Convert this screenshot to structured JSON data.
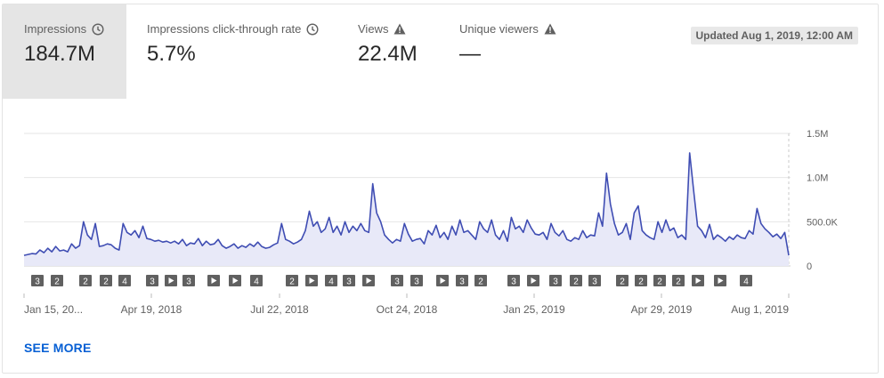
{
  "metrics": [
    {
      "label": "Impressions",
      "value": "184.7M",
      "icon": "clock-icon",
      "active": true
    },
    {
      "label": "Impressions click-through rate",
      "value": "5.7%",
      "icon": "clock-icon",
      "active": false
    },
    {
      "label": "Views",
      "value": "22.4M",
      "icon": "warning-icon",
      "active": false
    },
    {
      "label": "Unique viewers",
      "value": "—",
      "icon": "warning-icon",
      "active": false
    }
  ],
  "updated": "Updated Aug 1, 2019, 12:00 AM",
  "see_more": "SEE MORE",
  "colors": {
    "line": "#3f4db3",
    "fill": "#e8e9f8",
    "active_bg": "#e5e5e5",
    "link": "#065fd4",
    "marker": "#606060"
  },
  "chart_data": {
    "type": "area",
    "title": "",
    "xlabel": "",
    "ylabel": "",
    "ylim": [
      0,
      1500000
    ],
    "y_ticks": [
      "0",
      "500.0K",
      "1.0M",
      "1.5M"
    ],
    "x_tick_labels": [
      "Jan 15, 20...",
      "Apr 19, 2018",
      "Jul 22, 2018",
      "Oct 24, 2018",
      "Jan 25, 2019",
      "Apr 29, 2019",
      "Aug 1, 2019"
    ],
    "grid": true,
    "series": [
      {
        "name": "",
        "x_range": [
          "Jan 15, 2018",
          "Aug 1, 2019"
        ],
        "values": [
          120000,
          130000,
          140000,
          135000,
          180000,
          150000,
          200000,
          160000,
          220000,
          170000,
          180000,
          160000,
          250000,
          200000,
          230000,
          500000,
          350000,
          300000,
          480000,
          220000,
          230000,
          250000,
          240000,
          200000,
          180000,
          480000,
          380000,
          350000,
          400000,
          320000,
          450000,
          310000,
          300000,
          280000,
          290000,
          270000,
          280000,
          260000,
          280000,
          250000,
          300000,
          230000,
          260000,
          250000,
          310000,
          230000,
          280000,
          240000,
          250000,
          300000,
          230000,
          200000,
          220000,
          250000,
          200000,
          230000,
          210000,
          250000,
          220000,
          270000,
          220000,
          200000,
          210000,
          240000,
          260000,
          480000,
          300000,
          280000,
          250000,
          270000,
          300000,
          400000,
          620000,
          450000,
          500000,
          380000,
          420000,
          550000,
          380000,
          450000,
          350000,
          500000,
          380000,
          450000,
          400000,
          480000,
          400000,
          380000,
          930000,
          600000,
          500000,
          350000,
          300000,
          260000,
          300000,
          280000,
          480000,
          360000,
          280000,
          300000,
          310000,
          250000,
          400000,
          350000,
          460000,
          320000,
          380000,
          300000,
          450000,
          350000,
          520000,
          380000,
          400000,
          350000,
          300000,
          500000,
          420000,
          380000,
          520000,
          350000,
          300000,
          400000,
          280000,
          550000,
          420000,
          450000,
          380000,
          520000,
          430000,
          360000,
          350000,
          380000,
          300000,
          480000,
          380000,
          340000,
          400000,
          300000,
          280000,
          320000,
          300000,
          400000,
          320000,
          350000,
          340000,
          600000,
          450000,
          1050000,
          700000,
          480000,
          350000,
          380000,
          480000,
          300000,
          600000,
          680000,
          400000,
          350000,
          320000,
          300000,
          500000,
          380000,
          520000,
          400000,
          430000,
          320000,
          350000,
          300000,
          1280000,
          850000,
          450000,
          400000,
          320000,
          470000,
          300000,
          350000,
          320000,
          280000,
          330000,
          300000,
          350000,
          320000,
          310000,
          400000,
          360000,
          650000,
          480000,
          420000,
          380000,
          330000,
          360000,
          310000,
          380000,
          120000
        ]
      }
    ],
    "annotations": [
      {
        "kind": "number",
        "text": "3"
      },
      {
        "kind": "number",
        "text": "2"
      },
      {
        "kind": "number",
        "text": "2"
      },
      {
        "kind": "number",
        "text": "2"
      },
      {
        "kind": "number",
        "text": "4"
      },
      {
        "kind": "number",
        "text": "3"
      },
      {
        "kind": "play",
        "text": ""
      },
      {
        "kind": "number",
        "text": "3"
      },
      {
        "kind": "play",
        "text": ""
      },
      {
        "kind": "play",
        "text": ""
      },
      {
        "kind": "number",
        "text": "4"
      },
      {
        "kind": "number",
        "text": "2"
      },
      {
        "kind": "play",
        "text": ""
      },
      {
        "kind": "number",
        "text": "4"
      },
      {
        "kind": "number",
        "text": "3"
      },
      {
        "kind": "play",
        "text": ""
      },
      {
        "kind": "number",
        "text": "3"
      },
      {
        "kind": "number",
        "text": "3"
      },
      {
        "kind": "play",
        "text": ""
      },
      {
        "kind": "number",
        "text": "3"
      },
      {
        "kind": "number",
        "text": "2"
      },
      {
        "kind": "number",
        "text": "3"
      },
      {
        "kind": "play",
        "text": ""
      },
      {
        "kind": "number",
        "text": "3"
      },
      {
        "kind": "number",
        "text": "2"
      },
      {
        "kind": "number",
        "text": "3"
      },
      {
        "kind": "number",
        "text": "2"
      },
      {
        "kind": "number",
        "text": "2"
      },
      {
        "kind": "number",
        "text": "2"
      },
      {
        "kind": "number",
        "text": "2"
      },
      {
        "kind": "play",
        "text": ""
      },
      {
        "kind": "play",
        "text": ""
      },
      {
        "kind": "number",
        "text": "4"
      }
    ]
  }
}
